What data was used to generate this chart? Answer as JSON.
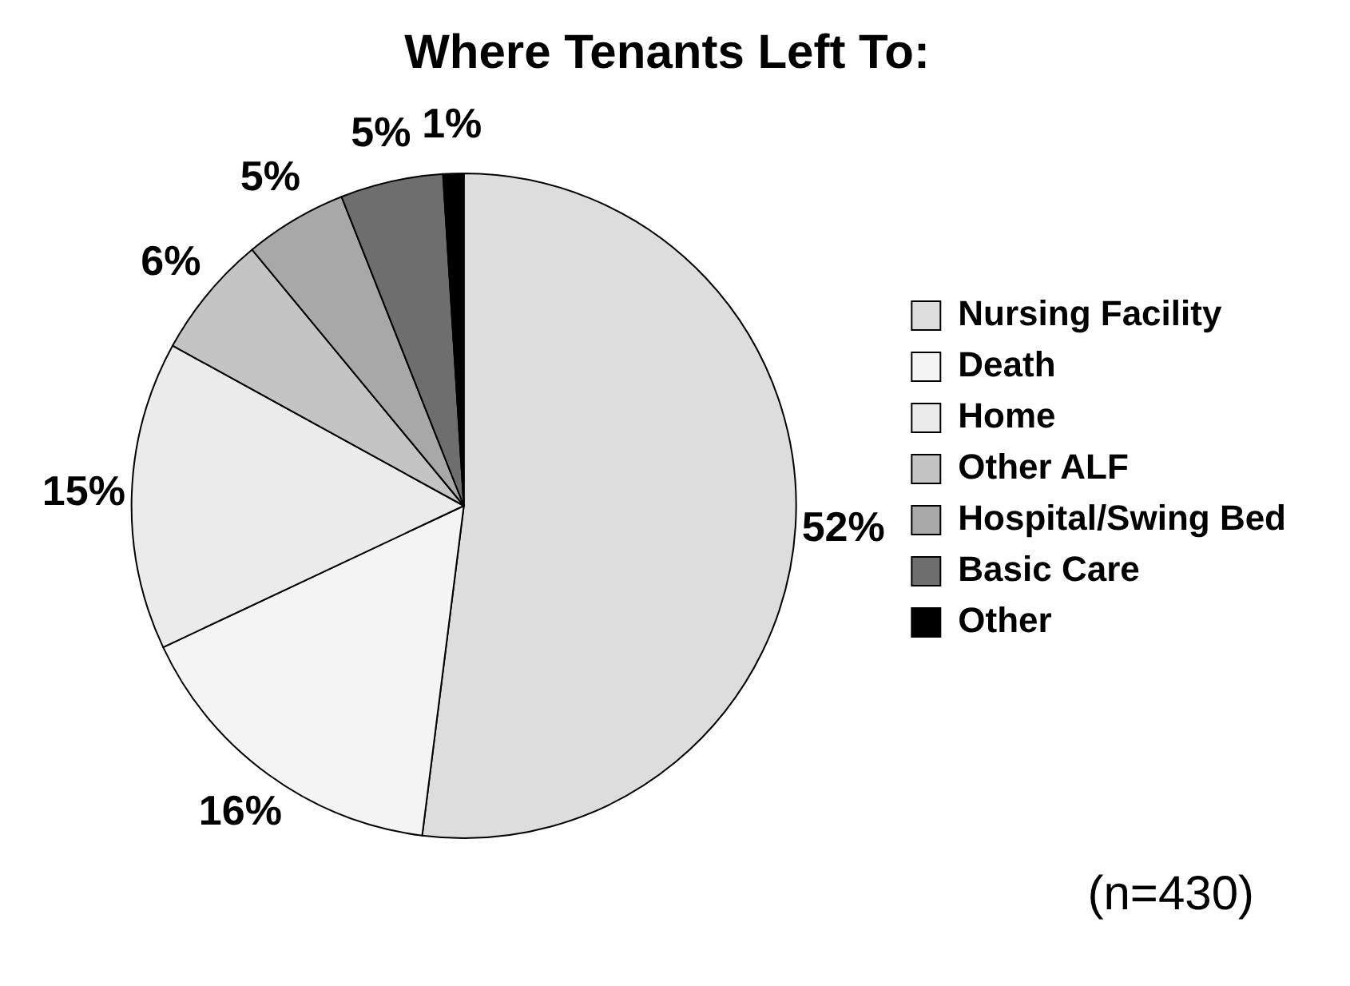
{
  "chart_data": {
    "type": "pie",
    "title": "Where Tenants Left To:",
    "categories": [
      "Nursing Facility",
      "Death",
      "Home",
      "Other ALF",
      "Hospital/Swing Bed",
      "Basic Care",
      "Other"
    ],
    "values": [
      52,
      16,
      15,
      6,
      5,
      5,
      1
    ],
    "colors": [
      "#dddddd",
      "#f4f4f4",
      "#ebebeb",
      "#c4c4c4",
      "#a8a8a8",
      "#6e6e6e",
      "#000000"
    ],
    "value_labels": [
      "52%",
      "16%",
      "15%",
      "6%",
      "5%",
      "5%",
      "1%"
    ],
    "legend": "right",
    "annotations": [
      "(n=430)"
    ]
  }
}
